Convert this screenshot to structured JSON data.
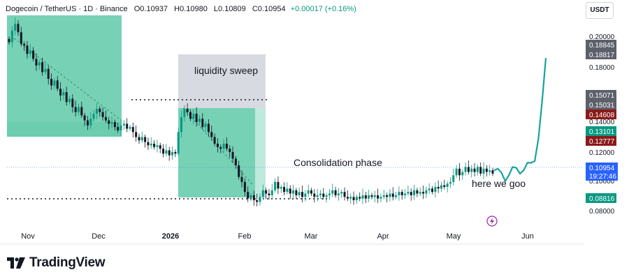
{
  "header": {
    "symbol": "Dogecoin / TetherUS · 1D · Binance",
    "open": "O0.10937",
    "high": "H0.10980",
    "low": "L0.10809",
    "close": "C0.10954",
    "change": "+0.00017 (+0.16%)"
  },
  "currency_button": "USDT",
  "watermark": {
    "text": "TradingView"
  },
  "colors": {
    "up": "#089981",
    "down": "#131722",
    "zone": "#5fc9a8",
    "sweep_box": "#d1d4dc",
    "projection": "#16a39a",
    "price_label": "#2962ff",
    "red_label": "#8b1a1a"
  },
  "annotations": {
    "liquidity_sweep": "liquidity sweep",
    "consolidation": "Consolidation phase",
    "here_we_goo": "here we goo"
  },
  "price_axis": {
    "ticks": [
      "0.20000",
      "0.18000",
      "0.14000",
      "0.12000",
      "0.10000",
      "0.08000"
    ],
    "labels": [
      {
        "text": "0.18845",
        "value": 0.18845,
        "color": "#5d606b"
      },
      {
        "text": "0.18817",
        "value": 0.18817,
        "color": "#5d606b"
      },
      {
        "text": "0.15071",
        "value": 0.15071,
        "color": "#5d606b"
      },
      {
        "text": "0.15031",
        "value": 0.15031,
        "color": "#5d606b"
      },
      {
        "text": "0.14608",
        "value": 0.14608,
        "color": "#8b1a1a"
      },
      {
        "text": "0.13101",
        "value": 0.13101,
        "color": "#089981"
      },
      {
        "text": "0.12777",
        "value": 0.12777,
        "color": "#8b1a1a"
      }
    ],
    "last_price": {
      "text": "0.10954",
      "countdown": "19:27:46"
    },
    "low_label": "0.08816"
  },
  "chart_data": {
    "type": "candlestick",
    "symbol": "Dogecoin / TetherUS",
    "interval": "1D",
    "x_labels": [
      "Nov",
      "Dec",
      "2026",
      "Feb",
      "Mar",
      "Apr",
      "May",
      "Jun"
    ],
    "ylim": [
      0.075,
      0.205
    ],
    "levels": {
      "liquidity_sweep_high": 0.1505,
      "range_low": 0.0885
    },
    "close_series": [
      0.188,
      0.195,
      0.199,
      0.194,
      0.187,
      0.186,
      0.181,
      0.183,
      0.178,
      0.174,
      0.176,
      0.17,
      0.172,
      0.166,
      0.162,
      0.165,
      0.16,
      0.156,
      0.158,
      0.152,
      0.154,
      0.149,
      0.146,
      0.149,
      0.144,
      0.141,
      0.138,
      0.142,
      0.145,
      0.148,
      0.146,
      0.143,
      0.141,
      0.139,
      0.14,
      0.137,
      0.135,
      0.138,
      0.139,
      0.136,
      0.137,
      0.134,
      0.131,
      0.129,
      0.131,
      0.128,
      0.126,
      0.127,
      0.125,
      0.126,
      0.124,
      0.121,
      0.123,
      0.12,
      0.122,
      0.121,
      0.134,
      0.143,
      0.148,
      0.146,
      0.142,
      0.145,
      0.14,
      0.142,
      0.137,
      0.139,
      0.134,
      0.131,
      0.127,
      0.125,
      0.124,
      0.127,
      0.124,
      0.122,
      0.118,
      0.114,
      0.107,
      0.104,
      0.098,
      0.094,
      0.096,
      0.093,
      0.092,
      0.095,
      0.099,
      0.097,
      0.096,
      0.099,
      0.104,
      0.1,
      0.101,
      0.098,
      0.1,
      0.097,
      0.099,
      0.096,
      0.098,
      0.095,
      0.097,
      0.099,
      0.097,
      0.095,
      0.096,
      0.097,
      0.095,
      0.096,
      0.097,
      0.099,
      0.096,
      0.097,
      0.098,
      0.095,
      0.094,
      0.095,
      0.093,
      0.095,
      0.094,
      0.096,
      0.094,
      0.096,
      0.095,
      0.096,
      0.094,
      0.095,
      0.096,
      0.095,
      0.097,
      0.095,
      0.096,
      0.098,
      0.096,
      0.097,
      0.098,
      0.096,
      0.099,
      0.097,
      0.098,
      0.097,
      0.099,
      0.1,
      0.098,
      0.101,
      0.1,
      0.102,
      0.101,
      0.103,
      0.104,
      0.108,
      0.112,
      0.108,
      0.11,
      0.113,
      0.11,
      0.112,
      0.11,
      0.113,
      0.109,
      0.112,
      0.11,
      0.111,
      0.109
    ],
    "projection": [
      [
        0.111,
        0.111
      ],
      [
        0.112,
        0.112
      ],
      [
        0.111,
        0.108
      ],
      [
        0.105,
        0.104
      ],
      [
        0.106,
        0.11
      ],
      [
        0.112,
        0.114
      ],
      [
        0.113,
        0.112
      ],
      [
        0.11,
        0.108
      ],
      [
        0.109,
        0.113
      ],
      [
        0.115,
        0.116
      ],
      [
        0.116,
        0.115
      ],
      [
        0.115,
        0.118
      ],
      [
        0.125,
        0.135
      ],
      [
        0.145,
        0.16
      ],
      [
        0.172,
        0.185
      ]
    ]
  }
}
